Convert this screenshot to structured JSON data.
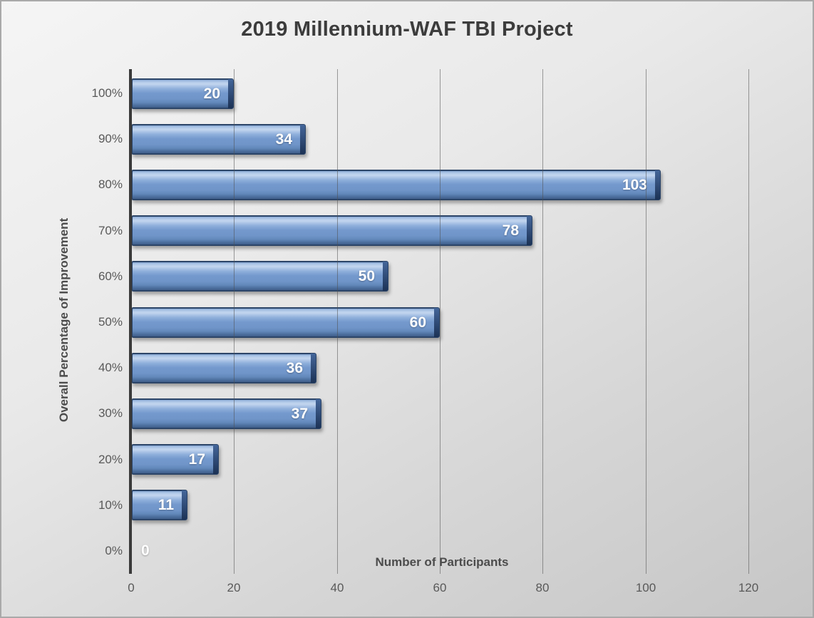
{
  "chart_data": {
    "type": "bar",
    "orientation": "horizontal",
    "title": "2019 Millennium-WAF TBI Project",
    "categories": [
      "100%",
      "90%",
      "80%",
      "70%",
      "60%",
      "50%",
      "40%",
      "30%",
      "20%",
      "10%",
      "0%"
    ],
    "values": [
      20,
      34,
      103,
      78,
      50,
      60,
      36,
      37,
      17,
      11,
      0
    ],
    "xlabel": "Number of Participants",
    "ylabel": "Overall Percentage of Improvement",
    "xlim": [
      0,
      120
    ],
    "x_ticks": [
      0,
      20,
      40,
      60,
      80,
      100,
      120
    ],
    "grid": "vertical-gridlines-on",
    "legend": "none",
    "data_labels": "inside-end white bold",
    "colors": {
      "bar_fill": "#7297cb",
      "bar_border": "#2c4568",
      "bar_highlight": "#c3d6ef",
      "bar_end_cap": "#1c3255",
      "axis_line": "#3a3a3a",
      "gridline": "#8c8c8c",
      "tick_text": "#595959",
      "title_text": "#3c3c3c",
      "axis_title_text": "#4c4c4c",
      "value_text": "#ffffff",
      "background_top": "#f5f5f5",
      "background_bottom": "#c6c6c6"
    }
  }
}
